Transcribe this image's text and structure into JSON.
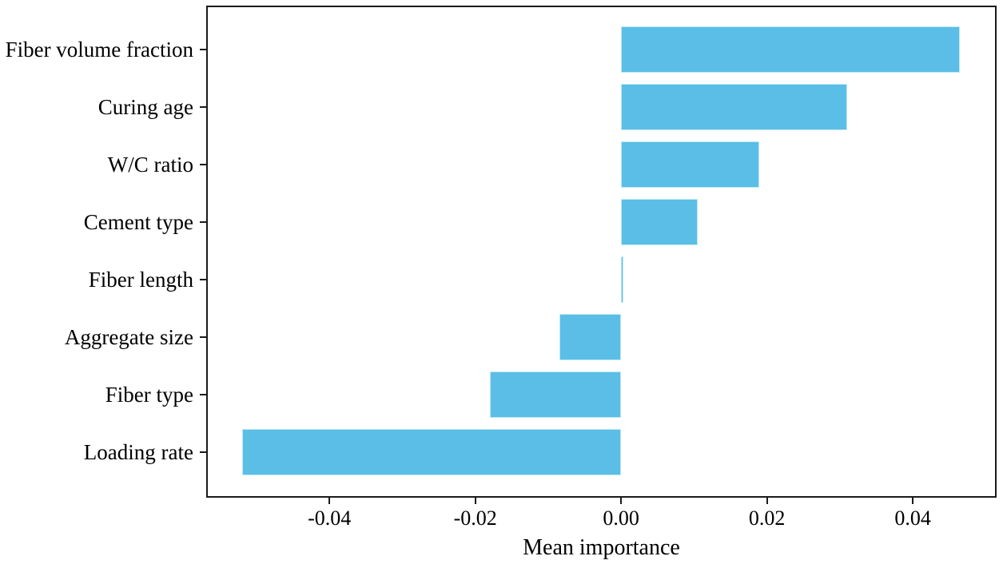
{
  "figure": {
    "background_color": "#ffffff",
    "axis_color": "#1a1a1a",
    "text_color": "#000000"
  },
  "chart_data": {
    "type": "bar",
    "orientation": "horizontal",
    "title": "",
    "xlabel": "Mean importance",
    "ylabel": "",
    "categories": [
      "Fiber volume fraction",
      "Curing age",
      "W/C ratio",
      "Cement type",
      "Fiber length",
      "Aggregate size",
      "Fiber type",
      "Loading rate"
    ],
    "values": [
      0.0465,
      0.031,
      0.019,
      0.0105,
      0.0003,
      -0.0085,
      -0.018,
      -0.052
    ],
    "xlim": [
      -0.0569,
      0.0515
    ],
    "xticks": [
      {
        "value": -0.04,
        "label": "-0.04"
      },
      {
        "value": -0.02,
        "label": "-0.02"
      },
      {
        "value": 0.0,
        "label": "0.00"
      },
      {
        "value": 0.02,
        "label": "0.02"
      },
      {
        "value": 0.04,
        "label": "0.04"
      }
    ],
    "bar_color": "#5abee6",
    "bar_edge_color": "#bde9f6",
    "grid": false,
    "legend": null
  }
}
